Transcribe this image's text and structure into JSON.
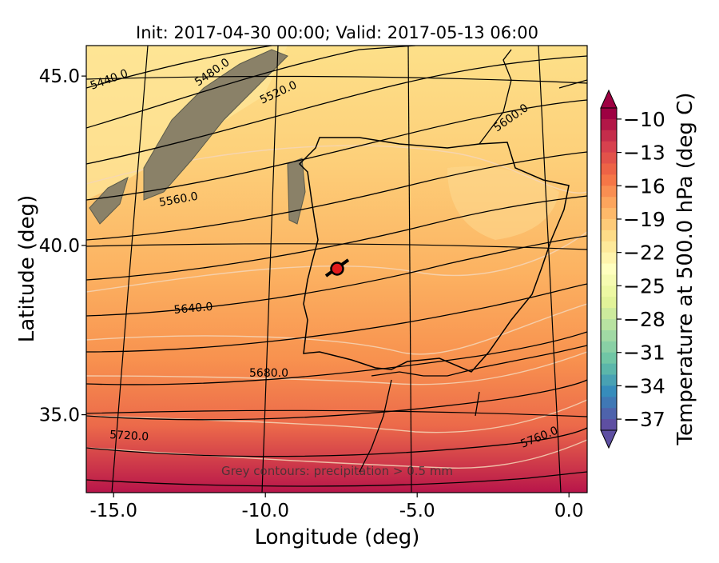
{
  "figure": {
    "title": "Init: 2017-04-30 00:00; Valid: 2017-05-13 06:00",
    "xlabel": "Longitude (deg)",
    "ylabel": "Latitude (deg)",
    "note": "Grey contours: precipitation > 0.5 mm"
  },
  "axes": {
    "x_ticks": [
      {
        "value": -15,
        "label": "-15.0"
      },
      {
        "value": -10,
        "label": "-10.0"
      },
      {
        "value": -5,
        "label": "-5.0"
      },
      {
        "value": 0,
        "label": "0.0"
      }
    ],
    "y_ticks": [
      {
        "value": 45,
        "label": "45.0"
      },
      {
        "value": 40,
        "label": "40.0"
      },
      {
        "value": 35,
        "label": "35.0"
      }
    ],
    "xlim": [
      -15.9,
      0.6
    ],
    "ylim": [
      32.7,
      45.9
    ]
  },
  "colorbar": {
    "label": "Temperature at 500.0 hPa (deg C)",
    "ticks": [
      "−10",
      "−13",
      "−16",
      "−19",
      "−22",
      "−25",
      "−28",
      "−31",
      "−34",
      "−37"
    ],
    "range": [
      -38,
      -9
    ],
    "colormap": [
      "#9e0142",
      "#d53e4f",
      "#f46d43",
      "#fdae61",
      "#fee08b",
      "#ffffbf",
      "#e6f598",
      "#abdda4",
      "#66c2a5",
      "#3288bd",
      "#5e4fa2"
    ]
  },
  "contour_labels": [
    {
      "text": "5440.0"
    },
    {
      "text": "5480.0"
    },
    {
      "text": "5520.0"
    },
    {
      "text": "5560.0"
    },
    {
      "text": "5600.0"
    },
    {
      "text": "5640.0"
    },
    {
      "text": "5680.0"
    },
    {
      "text": "5720.0"
    },
    {
      "text": "5760.0"
    }
  ],
  "marker": {
    "lon": -7.6,
    "lat": 39.3,
    "color": "#e31a1c"
  }
}
